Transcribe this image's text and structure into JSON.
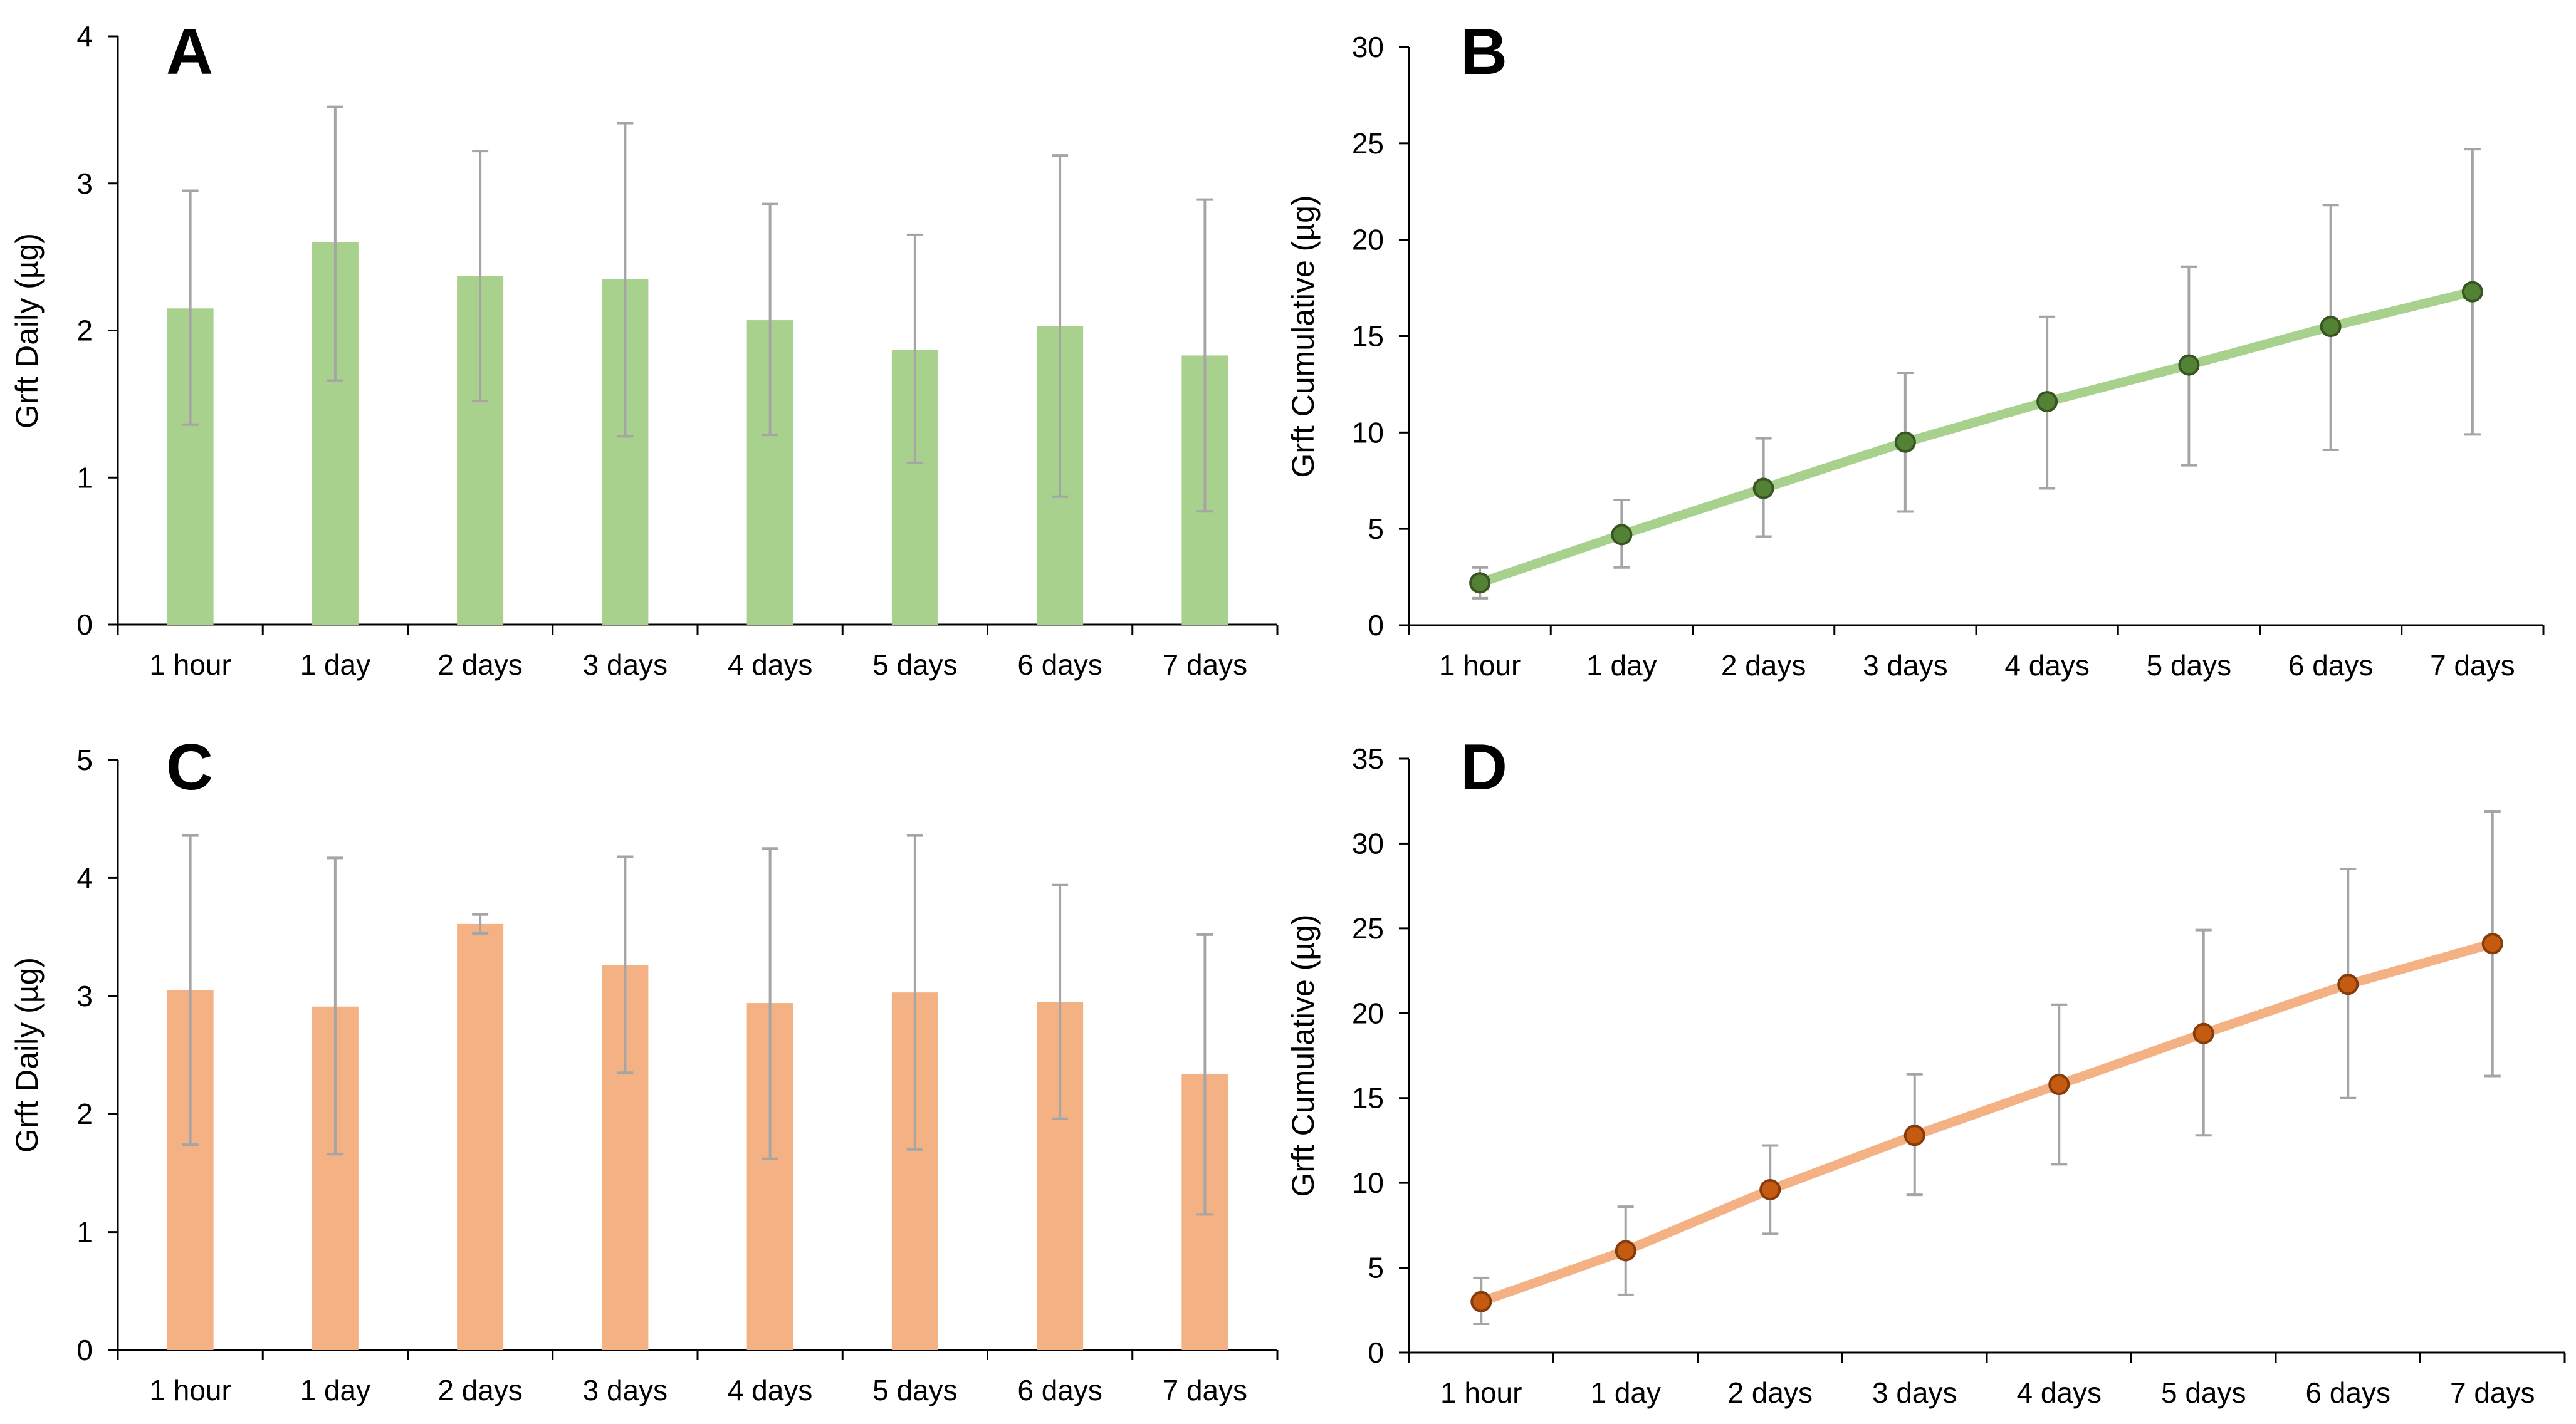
{
  "figure": {
    "colors": {
      "green_bar": "#a9d18e",
      "green_line": "#a9d18e",
      "green_marker_fill": "#548235",
      "green_marker_stroke": "#375623",
      "orange_bar": "#f4b183",
      "orange_line": "#f4b183",
      "orange_marker_fill": "#c55a11",
      "orange_marker_stroke": "#843c0c",
      "error_bar": "#a5a5a5",
      "axis": "#000000"
    }
  },
  "chart_data": [
    {
      "panel": "A",
      "type": "bar",
      "title": "",
      "xlabel": "",
      "ylabel": "Grft Daily (µg)",
      "categories": [
        "1 hour",
        "1 day",
        "2 days",
        "3 days",
        "4 days",
        "5 days",
        "6 days",
        "7 days"
      ],
      "values": [
        2.15,
        2.6,
        2.37,
        2.35,
        2.07,
        1.87,
        2.03,
        1.83
      ],
      "error_upper": [
        2.95,
        3.52,
        3.22,
        3.41,
        2.86,
        2.65,
        3.19,
        2.89
      ],
      "error_lower": [
        1.36,
        1.66,
        1.52,
        1.28,
        1.29,
        1.1,
        0.87,
        0.77
      ],
      "ylim": [
        0,
        4
      ],
      "yticks": [
        0,
        1,
        2,
        3,
        4
      ],
      "grid": false,
      "color": "#a9d18e"
    },
    {
      "panel": "B",
      "type": "line",
      "title": "",
      "xlabel": "",
      "ylabel": "Grft Cumulative (µg)",
      "categories": [
        "1 hour",
        "1 day",
        "2 days",
        "3 days",
        "4 days",
        "5 days",
        "6 days",
        "7 days"
      ],
      "values": [
        2.2,
        4.7,
        7.1,
        9.5,
        11.6,
        13.5,
        15.5,
        17.3
      ],
      "error_upper": [
        3.0,
        6.5,
        9.7,
        13.1,
        16.0,
        18.6,
        21.8,
        24.7
      ],
      "error_lower": [
        1.4,
        3.0,
        4.6,
        5.9,
        7.1,
        8.3,
        9.1,
        9.9
      ],
      "ylim": [
        0,
        30
      ],
      "yticks": [
        0,
        5,
        10,
        15,
        20,
        25,
        30
      ],
      "grid": false,
      "color": "#a9d18e"
    },
    {
      "panel": "C",
      "type": "bar",
      "title": "",
      "xlabel": "",
      "ylabel": "Grft Daily (µg)",
      "categories": [
        "1 hour",
        "1 day",
        "2 days",
        "3 days",
        "4 days",
        "5 days",
        "6 days",
        "7 days"
      ],
      "values": [
        3.05,
        2.91,
        3.61,
        3.26,
        2.94,
        3.03,
        2.95,
        2.34
      ],
      "error_upper": [
        4.36,
        4.17,
        3.69,
        4.18,
        4.25,
        4.36,
        3.94,
        3.52
      ],
      "error_lower": [
        1.74,
        1.66,
        3.53,
        2.35,
        1.62,
        1.7,
        1.96,
        1.15
      ],
      "ylim": [
        0,
        5
      ],
      "yticks": [
        0,
        1,
        2,
        3,
        4,
        5
      ],
      "grid": false,
      "color": "#f4b183"
    },
    {
      "panel": "D",
      "type": "line",
      "title": "",
      "xlabel": "",
      "ylabel": "Grft Cumulative (µg)",
      "categories": [
        "1 hour",
        "1 day",
        "2 days",
        "3 days",
        "4 days",
        "5 days",
        "6 days",
        "7 days"
      ],
      "values": [
        3.0,
        6.0,
        9.6,
        12.8,
        15.8,
        18.8,
        21.7,
        24.1
      ],
      "error_upper": [
        4.4,
        8.6,
        12.2,
        16.4,
        20.5,
        24.9,
        28.5,
        31.9
      ],
      "error_lower": [
        1.7,
        3.4,
        7.0,
        9.3,
        11.1,
        12.8,
        15.0,
        16.3
      ],
      "ylim": [
        0,
        35
      ],
      "yticks": [
        0,
        5,
        10,
        15,
        20,
        25,
        30,
        35
      ],
      "grid": false,
      "color": "#f4b183"
    }
  ]
}
